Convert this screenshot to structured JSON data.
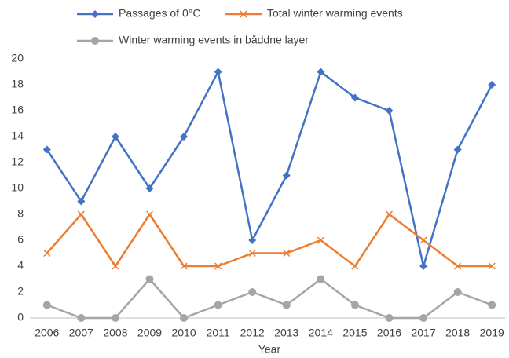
{
  "chart_data": {
    "type": "line",
    "x_label": "Year",
    "categories": [
      "2006",
      "2007",
      "2008",
      "2009",
      "2010",
      "2011",
      "2012",
      "2013",
      "2014",
      "2015",
      "2016",
      "2017",
      "2018",
      "2019"
    ],
    "series": [
      {
        "name": "Passages of 0°C",
        "color": "#4472c4",
        "marker": "diamond",
        "values": [
          13,
          9,
          14,
          10,
          14,
          19,
          6,
          11,
          19,
          17,
          16,
          4,
          13,
          18
        ]
      },
      {
        "name": "Total winter warming events",
        "color": "#ed7d31",
        "marker": "x",
        "values": [
          5,
          8,
          4,
          8,
          4,
          4,
          5,
          5,
          6,
          4,
          8,
          6,
          4,
          4
        ]
      },
      {
        "name": "Winter warming events in båddne layer",
        "color": "#a5a5a5",
        "marker": "circle",
        "values": [
          1,
          0,
          0,
          3,
          0,
          1,
          2,
          1,
          3,
          1,
          0,
          0,
          2,
          1
        ]
      }
    ],
    "ylim": [
      0,
      20
    ],
    "yticks": [
      0,
      2,
      4,
      6,
      8,
      10,
      12,
      14,
      16,
      18,
      20
    ],
    "grid": false,
    "legend": "top"
  }
}
